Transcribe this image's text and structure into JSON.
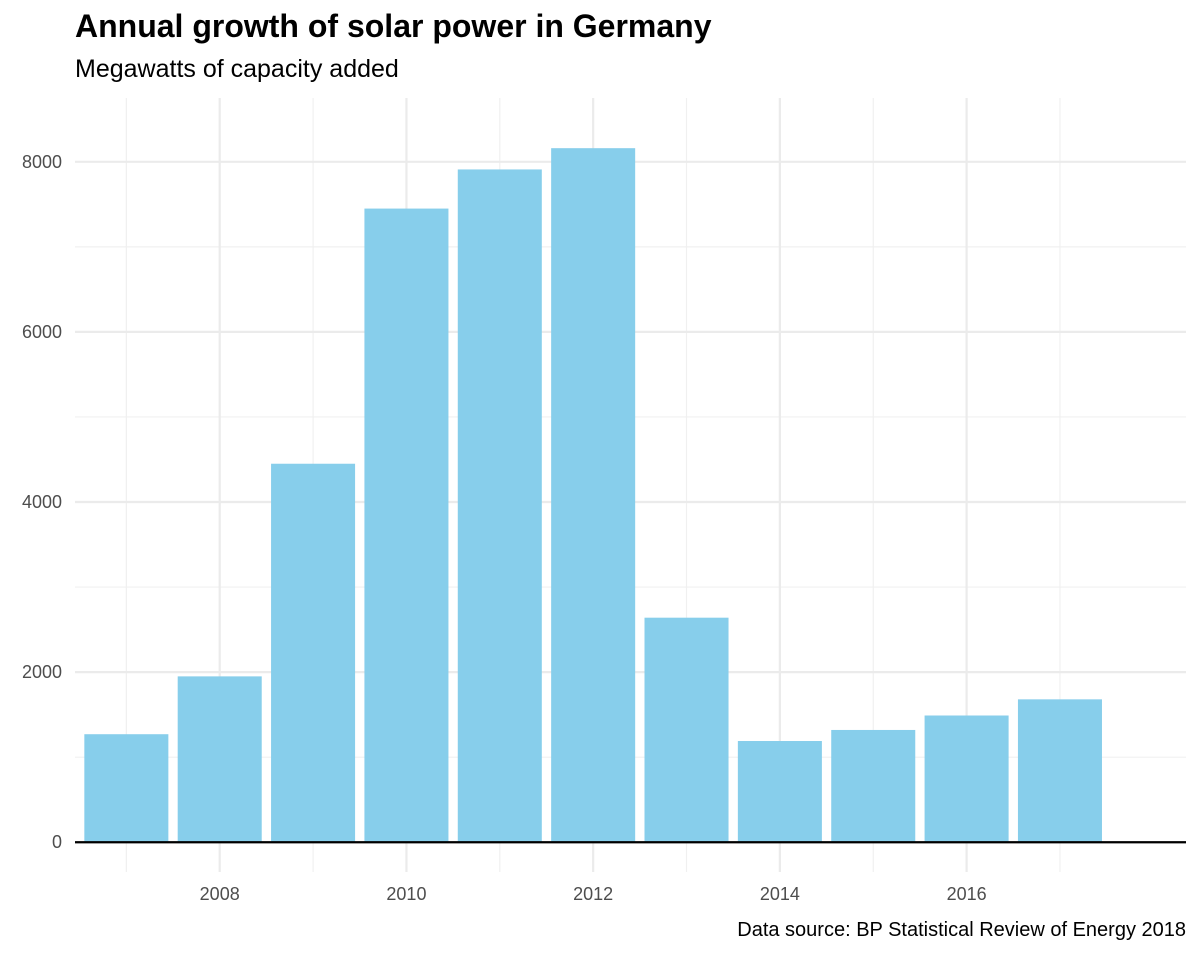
{
  "chart_data": {
    "type": "bar",
    "title": "Annual growth of solar power in Germany",
    "subtitle": "Megawatts of capacity added",
    "caption": "Data source: BP Statistical Review of Energy 2018",
    "xlabel": "",
    "ylabel": "",
    "categories": [
      2007,
      2008,
      2009,
      2010,
      2011,
      2012,
      2013,
      2014,
      2015,
      2016,
      2017
    ],
    "values": [
      1270,
      1950,
      4450,
      7450,
      7910,
      8160,
      2640,
      1190,
      1320,
      1490,
      1680
    ],
    "xlim": [
      2006.45,
      2018.35
    ],
    "ylim": [
      -350,
      8750
    ],
    "x_ticks": [
      2008,
      2010,
      2012,
      2014,
      2016
    ],
    "x_tick_labels": [
      "2008",
      "2010",
      "2012",
      "2014",
      "2016"
    ],
    "y_ticks": [
      0,
      2000,
      4000,
      6000,
      8000
    ],
    "y_tick_labels": [
      "0",
      "2000",
      "4000",
      "6000",
      "8000"
    ],
    "bar_color": "#87ceeb",
    "grid": true,
    "legend": "none"
  }
}
